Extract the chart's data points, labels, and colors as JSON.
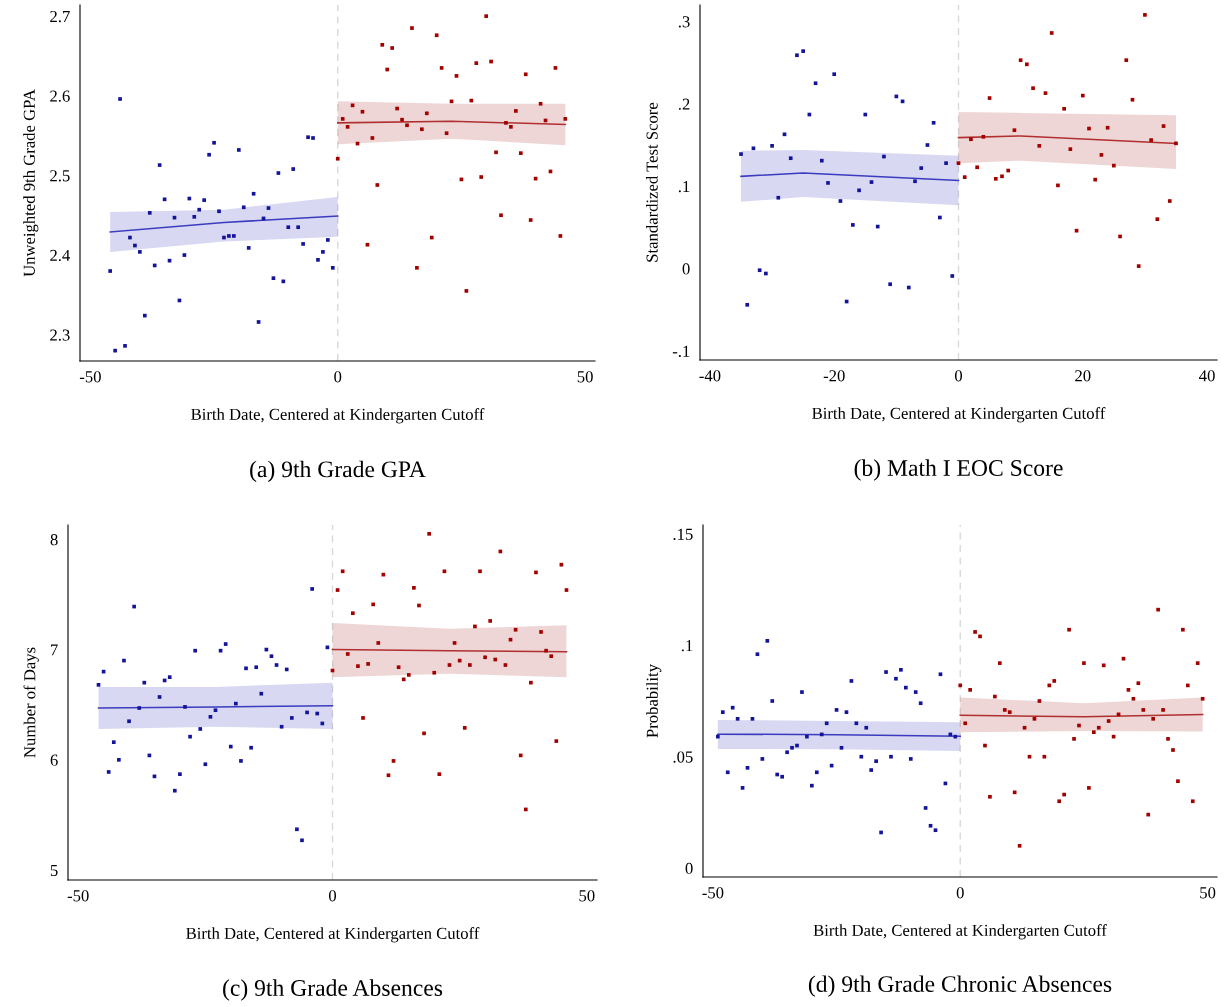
{
  "chart_data": [
    {
      "type": "scatter",
      "title": "(a) 9th Grade GPA",
      "xlabel": "Birth Date, Centered at Kindergarten Cutoff",
      "ylabel": "Unweighted 9th Grade GPA",
      "xlim": [
        -52.1,
        52.0
      ],
      "ylim": [
        2.267,
        2.714
      ],
      "xticks": [
        -50,
        0,
        50
      ],
      "yticks": [
        2.3,
        2.4,
        2.5,
        2.6,
        2.7
      ],
      "ref_lines": [
        {
          "axis": "x",
          "value": 0,
          "color": "#d9d9d9",
          "line_style": "dashed"
        }
      ],
      "series": [
        {
          "marker": "square",
          "color": "#14149b",
          "x": [
            -46,
            -45,
            -44,
            -43,
            -42,
            -41,
            -40,
            -39,
            -38,
            -37,
            -36,
            -35,
            -34,
            -33,
            -32,
            -31,
            -30,
            -29,
            -28,
            -27,
            -26,
            -25,
            -24,
            -23,
            -22,
            -21,
            -20,
            -19,
            -18,
            -17,
            -16,
            -15,
            -14,
            -13,
            -12,
            -11,
            -10,
            -9,
            -8,
            -7,
            -6,
            -5,
            -4,
            -3,
            -2,
            -1
          ],
          "values": [
            2.38,
            2.28,
            2.596,
            2.286,
            2.422,
            2.412,
            2.404,
            2.324,
            2.453,
            2.387,
            2.513,
            2.47,
            2.393,
            2.447,
            2.343,
            2.4,
            2.471,
            2.448,
            2.457,
            2.469,
            2.526,
            2.541,
            2.455,
            2.422,
            2.424,
            2.424,
            2.532,
            2.46,
            2.409,
            2.477,
            2.316,
            2.446,
            2.459,
            2.371,
            2.503,
            2.367,
            2.435,
            2.508,
            2.435,
            2.414,
            2.548,
            2.547,
            2.394,
            2.404,
            2.419,
            2.384
          ]
        },
        {
          "marker": "square",
          "color": "#a30000",
          "x": [
            0,
            1,
            2,
            3,
            4,
            5,
            6,
            7,
            8,
            9,
            10,
            11,
            12,
            13,
            14,
            15,
            16,
            17,
            18,
            19,
            20,
            21,
            22,
            23,
            24,
            25,
            26,
            27,
            28,
            29,
            30,
            31,
            32,
            33,
            34,
            35,
            36,
            37,
            38,
            39,
            40,
            41,
            42,
            43,
            44,
            45,
            46
          ],
          "values": [
            2.521,
            2.571,
            2.561,
            2.588,
            2.54,
            2.58,
            2.413,
            2.547,
            2.488,
            2.664,
            2.633,
            2.66,
            2.584,
            2.57,
            2.563,
            2.685,
            2.384,
            2.558,
            2.578,
            2.422,
            2.676,
            2.635,
            2.553,
            2.593,
            2.625,
            2.495,
            2.355,
            2.594,
            2.641,
            2.498,
            2.7,
            2.643,
            2.529,
            2.45,
            2.566,
            2.561,
            2.581,
            2.528,
            2.627,
            2.444,
            2.496,
            2.59,
            2.569,
            2.505,
            2.635,
            2.424,
            2.571
          ]
        },
        {
          "type": "line",
          "color": "#3b3bbf",
          "x": [
            -46,
            -23,
            0
          ],
          "values": [
            2.429,
            2.441,
            2.449
          ],
          "lower": [
            2.404,
            2.417,
            2.423
          ],
          "upper": [
            2.454,
            2.457,
            2.473
          ]
        },
        {
          "type": "line",
          "color": "#b03030",
          "x": [
            0,
            23,
            46
          ],
          "values": [
            2.566,
            2.568,
            2.564
          ],
          "lower": [
            2.539,
            2.546,
            2.538
          ],
          "upper": [
            2.593,
            2.59,
            2.59
          ]
        }
      ]
    },
    {
      "type": "scatter",
      "title": "(b) Math I EOC Score",
      "xlabel": "Birth Date, Centered at Kindergarten Cutoff",
      "ylabel": "Standardized Test Score",
      "xlim": [
        -41.6,
        41.6
      ],
      "ylim": [
        -0.111,
        0.32
      ],
      "xticks": [
        -40,
        -20,
        0,
        20,
        40
      ],
      "yticks": [
        {
          "value": -0.1,
          "label": "-.1"
        },
        0,
        {
          "value": 0.1,
          "label": ".1"
        },
        {
          "value": 0.2,
          "label": ".2"
        },
        {
          "value": 0.3,
          "label": ".3"
        }
      ],
      "ref_lines": [
        {
          "axis": "x",
          "value": 0,
          "color": "#d9d9d9",
          "line_style": "dashed"
        }
      ],
      "series": [
        {
          "marker": "square",
          "color": "#14149b",
          "x": [
            -35,
            -34,
            -33,
            -32,
            -31,
            -30,
            -29,
            -28,
            -27,
            -26,
            -25,
            -24,
            -23,
            -22,
            -21,
            -20,
            -19,
            -18,
            -17,
            -16,
            -15,
            -14,
            -13,
            -12,
            -11,
            -10,
            -9,
            -8,
            -7,
            -6,
            -5,
            -4,
            -3,
            -2,
            -1
          ],
          "values": [
            0.139,
            -0.044,
            0.146,
            -0.002,
            -0.006,
            0.149,
            0.086,
            0.163,
            0.134,
            0.259,
            0.264,
            0.187,
            0.225,
            0.131,
            0.104,
            0.236,
            0.082,
            -0.04,
            0.053,
            0.095,
            0.187,
            0.105,
            0.051,
            0.136,
            -0.019,
            0.209,
            0.203,
            -0.023,
            0.106,
            0.122,
            0.15,
            0.177,
            0.062,
            0.128,
            -0.009
          ]
        },
        {
          "marker": "square",
          "color": "#a30000",
          "x": [
            0,
            1,
            2,
            3,
            4,
            5,
            6,
            7,
            8,
            9,
            10,
            11,
            12,
            13,
            14,
            15,
            16,
            17,
            18,
            19,
            20,
            21,
            22,
            23,
            24,
            25,
            26,
            27,
            28,
            29,
            30,
            31,
            32,
            33,
            34,
            35
          ],
          "values": [
            0.128,
            0.111,
            0.157,
            0.123,
            0.16,
            0.207,
            0.109,
            0.112,
            0.119,
            0.168,
            0.253,
            0.248,
            0.219,
            0.149,
            0.213,
            0.286,
            0.101,
            0.194,
            0.145,
            0.046,
            0.21,
            0.17,
            0.108,
            0.138,
            0.171,
            0.125,
            0.039,
            0.253,
            0.205,
            0.003,
            0.308,
            0.156,
            0.06,
            0.173,
            0.082,
            0.152
          ]
        },
        {
          "type": "line",
          "color": "#3b3bbf",
          "x": [
            -35,
            -25,
            0
          ],
          "values": [
            0.112,
            0.116,
            0.107
          ],
          "lower": [
            0.081,
            0.087,
            0.077
          ],
          "upper": [
            0.143,
            0.144,
            0.137
          ]
        },
        {
          "type": "line",
          "color": "#b03030",
          "x": [
            0,
            10,
            35
          ],
          "values": [
            0.159,
            0.161,
            0.152
          ],
          "lower": [
            0.128,
            0.131,
            0.121
          ],
          "upper": [
            0.19,
            0.189,
            0.186
          ]
        }
      ]
    },
    {
      "type": "scatter",
      "title": "(c) 9th Grade Absences",
      "xlabel": "Birth Date, Centered at Kindergarten Cutoff",
      "ylabel": "Number of Days",
      "xlim": [
        -52.0,
        52.0
      ],
      "ylim": [
        4.91,
        8.13
      ],
      "xticks": [
        -50,
        0,
        50
      ],
      "yticks": [
        5,
        6,
        7,
        8
      ],
      "ref_lines": [
        {
          "axis": "x",
          "value": 0,
          "color": "#d9d9d9",
          "line_style": "dashed"
        }
      ],
      "series": [
        {
          "marker": "square",
          "color": "#14149b",
          "x": [
            -46,
            -45,
            -44,
            -43,
            -42,
            -41,
            -40,
            -39,
            -38,
            -37,
            -36,
            -35,
            -34,
            -33,
            -32,
            -31,
            -30,
            -29,
            -28,
            -27,
            -26,
            -25,
            -24,
            -23,
            -22,
            -21,
            -20,
            -19,
            -18,
            -17,
            -16,
            -15,
            -14,
            -13,
            -12,
            -11,
            -10,
            -9,
            -8,
            -7,
            -6,
            -5,
            -4,
            -3,
            -2,
            -1
          ],
          "values": [
            6.68,
            6.8,
            5.89,
            6.16,
            6.0,
            6.9,
            6.35,
            7.39,
            6.47,
            6.7,
            6.04,
            5.85,
            6.57,
            6.72,
            6.75,
            5.72,
            5.87,
            6.48,
            6.21,
            6.99,
            6.28,
            5.96,
            6.39,
            6.45,
            6.99,
            7.05,
            6.12,
            6.51,
            5.99,
            6.83,
            6.11,
            6.84,
            6.6,
            7.0,
            6.94,
            6.86,
            6.3,
            6.82,
            6.38,
            5.37,
            5.27,
            6.43,
            7.55,
            6.42,
            6.33,
            7.02
          ]
        },
        {
          "marker": "square",
          "color": "#a30000",
          "x": [
            0,
            1,
            2,
            3,
            4,
            5,
            6,
            7,
            8,
            9,
            10,
            11,
            12,
            13,
            14,
            15,
            16,
            17,
            18,
            19,
            20,
            21,
            22,
            23,
            24,
            25,
            26,
            27,
            28,
            29,
            30,
            31,
            32,
            33,
            34,
            35,
            36,
            37,
            38,
            39,
            40,
            41,
            42,
            43,
            44,
            45,
            46
          ],
          "values": [
            6.81,
            7.54,
            7.71,
            6.96,
            7.33,
            6.85,
            6.38,
            6.87,
            7.41,
            7.06,
            7.68,
            5.86,
            5.99,
            6.84,
            6.73,
            6.77,
            7.56,
            7.4,
            6.24,
            8.05,
            6.79,
            5.87,
            7.71,
            6.86,
            7.06,
            6.9,
            6.29,
            6.86,
            7.21,
            7.71,
            6.93,
            7.26,
            6.91,
            7.89,
            6.86,
            7.09,
            7.18,
            6.04,
            5.55,
            6.7,
            7.7,
            7.16,
            6.99,
            6.94,
            6.17,
            7.77,
            7.54
          ]
        },
        {
          "type": "line",
          "color": "#3b3bbf",
          "x": [
            -46,
            -23,
            0
          ],
          "values": [
            6.47,
            6.48,
            6.49
          ],
          "lower": [
            6.28,
            6.3,
            6.28
          ],
          "upper": [
            6.66,
            6.66,
            6.7
          ]
        },
        {
          "type": "line",
          "color": "#b03030",
          "x": [
            0,
            23,
            46
          ],
          "values": [
            7.0,
            6.99,
            6.98
          ],
          "lower": [
            6.75,
            6.78,
            6.75
          ],
          "upper": [
            7.24,
            7.19,
            7.22
          ]
        }
      ]
    },
    {
      "type": "scatter",
      "title": "(d) 9th Grade Chronic Absences",
      "xlabel": "Birth Date, Centered at Kindergarten Cutoff",
      "ylabel": "Probability",
      "xlim": [
        -52.0,
        51.9
      ],
      "ylim": [
        -0.004,
        0.154
      ],
      "xticks": [
        -50,
        0,
        50
      ],
      "yticks": [
        0,
        {
          "value": 0.05,
          "label": ".05"
        },
        {
          "value": 0.1,
          "label": ".1"
        },
        {
          "value": 0.15,
          "label": ".15"
        }
      ],
      "ref_lines": [
        {
          "axis": "x",
          "value": 0,
          "color": "#d9d9d9",
          "line_style": "dashed"
        }
      ],
      "series": [
        {
          "marker": "square",
          "color": "#14149b",
          "x": [
            -49,
            -48,
            -47,
            -46,
            -45,
            -44,
            -43,
            -42,
            -41,
            -40,
            -39,
            -38,
            -37,
            -36,
            -35,
            -34,
            -33,
            -32,
            -31,
            -30,
            -29,
            -28,
            -27,
            -26,
            -25,
            -24,
            -23,
            -22,
            -21,
            -20,
            -19,
            -18,
            -17,
            -16,
            -15,
            -14,
            -13,
            -12,
            -11,
            -10,
            -9,
            -8,
            -7,
            -6,
            -5,
            -4,
            -3,
            -2,
            -1
          ],
          "values": [
            0.059,
            0.07,
            0.043,
            0.072,
            0.067,
            0.036,
            0.045,
            0.067,
            0.096,
            0.049,
            0.102,
            0.075,
            0.042,
            0.041,
            0.052,
            0.054,
            0.055,
            0.079,
            0.059,
            0.037,
            0.043,
            0.06,
            0.065,
            0.046,
            0.071,
            0.054,
            0.07,
            0.084,
            0.065,
            0.05,
            0.063,
            0.044,
            0.048,
            0.016,
            0.088,
            0.05,
            0.085,
            0.089,
            0.081,
            0.049,
            0.079,
            0.074,
            0.027,
            0.019,
            0.017,
            0.087,
            0.038,
            0.06,
            0.059
          ]
        },
        {
          "marker": "square",
          "color": "#a30000",
          "x": [
            0,
            1,
            2,
            3,
            4,
            5,
            6,
            7,
            8,
            9,
            10,
            11,
            12,
            13,
            14,
            15,
            16,
            17,
            18,
            19,
            20,
            21,
            22,
            23,
            24,
            25,
            26,
            27,
            28,
            29,
            30,
            31,
            32,
            33,
            34,
            35,
            36,
            37,
            38,
            39,
            40,
            41,
            42,
            43,
            44,
            45,
            46,
            47,
            48,
            49
          ],
          "values": [
            0.082,
            0.065,
            0.08,
            0.106,
            0.104,
            0.055,
            0.032,
            0.077,
            0.092,
            0.071,
            0.07,
            0.034,
            0.01,
            0.063,
            0.05,
            0.067,
            0.075,
            0.05,
            0.082,
            0.084,
            0.03,
            0.033,
            0.107,
            0.058,
            0.064,
            0.092,
            0.036,
            0.061,
            0.063,
            0.091,
            0.066,
            0.059,
            0.069,
            0.094,
            0.08,
            0.076,
            0.083,
            0.071,
            0.024,
            0.067,
            0.116,
            0.071,
            0.058,
            0.053,
            0.039,
            0.107,
            0.082,
            0.03,
            0.092,
            0.076
          ]
        },
        {
          "type": "line",
          "color": "#3b3bbf",
          "x": [
            -49,
            -25,
            0
          ],
          "values": [
            0.0601,
            0.0599,
            0.0592
          ],
          "lower": [
            0.0535,
            0.0533,
            0.0526
          ],
          "upper": [
            0.0665,
            0.066,
            0.0655
          ]
        },
        {
          "type": "line",
          "color": "#b03030",
          "x": [
            0,
            25,
            49
          ],
          "values": [
            0.0686,
            0.0679,
            0.0689
          ],
          "lower": [
            0.061,
            0.0615,
            0.0613
          ],
          "upper": [
            0.0766,
            0.074,
            0.0766
          ]
        }
      ]
    }
  ]
}
